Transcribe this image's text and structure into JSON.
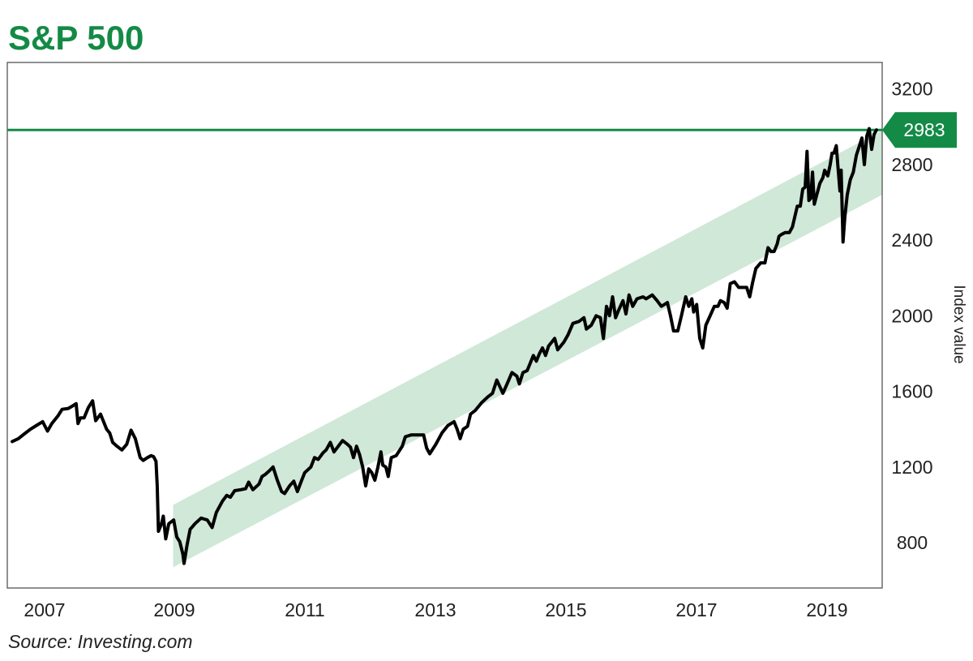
{
  "title": "S&P 500",
  "source": "Source: Investing.com",
  "colors": {
    "title": "#138a46",
    "reference_line": "#138a46",
    "channel_fill": "#cfe8d8",
    "series_line": "#000000",
    "flag_bg": "#138a46",
    "flag_text": "#ffffff",
    "frame": "#555555"
  },
  "chart_data": {
    "type": "line",
    "title": "S&P 500",
    "xlabel": "",
    "ylabel": "Index value",
    "x_ticks": [
      "2007",
      "2009",
      "2011",
      "2013",
      "2015",
      "2017",
      "2019"
    ],
    "y_ticks": [
      800,
      1200,
      1600,
      2000,
      2400,
      2800,
      3200
    ],
    "xlim": [
      2006.45,
      2019.9
    ],
    "ylim": [
      560,
      3340
    ],
    "grid": false,
    "y_axis_side": "right",
    "reference_line": {
      "value": 2983,
      "label": "2983"
    },
    "trend_channel": {
      "start": {
        "x": 2009.0,
        "lower": 670,
        "upper": 1000
      },
      "end": {
        "x": 2019.9,
        "lower": 2640,
        "upper": 2980
      }
    },
    "series": [
      {
        "points": [
          [
            "2006.5",
            1335
          ],
          [
            "2006.6",
            1350
          ],
          [
            "2006.7",
            1375
          ],
          [
            "2006.8",
            1400
          ],
          [
            "2006.9",
            1420
          ],
          [
            "2007.0",
            1440
          ],
          [
            "2007.08",
            1390
          ],
          [
            "2007.15",
            1430
          ],
          [
            "2007.25",
            1470
          ],
          [
            "2007.32",
            1505
          ],
          [
            "2007.42",
            1510
          ],
          [
            "2007.5",
            1525
          ],
          [
            "2007.55",
            1535
          ],
          [
            "2007.58",
            1430
          ],
          [
            "2007.62",
            1460
          ],
          [
            "2007.68",
            1460
          ],
          [
            "2007.75",
            1515
          ],
          [
            "2007.82",
            1550
          ],
          [
            "2007.87",
            1445
          ],
          [
            "2007.95",
            1480
          ],
          [
            "2008.05",
            1400
          ],
          [
            "2008.1",
            1380
          ],
          [
            "2008.15",
            1330
          ],
          [
            "2008.22",
            1310
          ],
          [
            "2008.3",
            1290
          ],
          [
            "2008.38",
            1320
          ],
          [
            "2008.45",
            1395
          ],
          [
            "2008.52",
            1350
          ],
          [
            "2008.6",
            1250
          ],
          [
            "2008.65",
            1235
          ],
          [
            "2008.72",
            1250
          ],
          [
            "2008.78",
            1260
          ],
          [
            "2008.82",
            1255
          ],
          [
            "2008.86",
            1230
          ],
          [
            "2008.88",
            1100
          ],
          [
            "2008.9",
            860
          ],
          [
            "2008.95",
            900
          ],
          [
            "2008.98",
            940
          ],
          [
            "2009.02",
            820
          ],
          [
            "2009.07",
            900
          ],
          [
            "2009.15",
            920
          ],
          [
            "2009.2",
            830
          ],
          [
            "2009.25",
            805
          ],
          [
            "2009.3",
            740
          ],
          [
            "2009.32",
            690
          ],
          [
            "2009.37",
            790
          ],
          [
            "2009.42",
            870
          ],
          [
            "2009.5",
            900
          ],
          [
            "2009.6",
            930
          ],
          [
            "2009.7",
            920
          ],
          [
            "2009.78",
            880
          ],
          [
            "2009.85",
            960
          ],
          [
            "2009.95",
            1020
          ],
          [
            "2010.02",
            1050
          ],
          [
            "2010.08",
            1040
          ],
          [
            "2010.15",
            1075
          ],
          [
            "2010.25",
            1080
          ],
          [
            "2010.33",
            1085
          ],
          [
            "2010.38",
            1120
          ],
          [
            "2010.45",
            1080
          ],
          [
            "2010.55",
            1110
          ],
          [
            "2010.6",
            1150
          ],
          [
            "2010.65",
            1160
          ],
          [
            "2010.72",
            1180
          ],
          [
            "2010.78",
            1200
          ],
          [
            "2010.85",
            1130
          ],
          [
            "2010.92",
            1070
          ],
          [
            "2010.97",
            1060
          ],
          [
            "2011.05",
            1100
          ],
          [
            "2011.12",
            1125
          ],
          [
            "2011.18",
            1070
          ],
          [
            "2011.25",
            1130
          ],
          [
            "2011.3",
            1170
          ],
          [
            "2011.4",
            1200
          ],
          [
            "2011.46",
            1250
          ],
          [
            "2011.52",
            1240
          ],
          [
            "2011.6",
            1275
          ],
          [
            "2011.65",
            1290
          ],
          [
            "2011.72",
            1330
          ],
          [
            "2011.78",
            1280
          ],
          [
            "2011.85",
            1310
          ],
          [
            "2011.92",
            1340
          ],
          [
            "2012.0",
            1320
          ],
          [
            "2012.05",
            1305
          ],
          [
            "2012.1",
            1250
          ],
          [
            "2012.15",
            1310
          ],
          [
            "2012.2",
            1265
          ],
          [
            "2012.25",
            1200
          ],
          [
            "2012.28",
            1140
          ],
          [
            "2012.3",
            1100
          ],
          [
            "2012.35",
            1190
          ],
          [
            "2012.4",
            1170
          ],
          [
            "2012.45",
            1130
          ],
          [
            "2012.5",
            1200
          ],
          [
            "2012.55",
            1280
          ],
          [
            "2012.58",
            1210
          ],
          [
            "2012.63",
            1200
          ],
          [
            "2012.67",
            1150
          ],
          [
            "2012.72",
            1250
          ],
          [
            "2012.8",
            1260
          ],
          [
            "2012.9",
            1310
          ],
          [
            "2012.95",
            1360
          ],
          [
            "2013.05",
            1370
          ],
          [
            "2013.15",
            1370
          ],
          [
            "2013.25",
            1370
          ],
          [
            "2013.3",
            1300
          ],
          [
            "2013.35",
            1270
          ],
          [
            "2013.45",
            1320
          ],
          [
            "2013.55",
            1380
          ],
          [
            "2013.65",
            1420
          ],
          [
            "2013.75",
            1440
          ],
          [
            "2013.8",
            1400
          ],
          [
            "2013.85",
            1350
          ],
          [
            "2013.9",
            1400
          ],
          [
            "2013.97",
            1415
          ],
          [
            "2014.02",
            1480
          ],
          [
            "2014.1",
            1500
          ],
          [
            "2014.2",
            1540
          ],
          [
            "2014.3",
            1570
          ],
          [
            "2014.38",
            1590
          ],
          [
            "2014.45",
            1660
          ],
          [
            "2014.55",
            1590
          ],
          [
            "2014.62",
            1640
          ],
          [
            "2014.7",
            1700
          ],
          [
            "2014.78",
            1680
          ],
          [
            "2014.82",
            1640
          ],
          [
            "2014.88",
            1700
          ],
          [
            "2014.95",
            1710
          ],
          [
            "2015.0",
            1750
          ],
          [
            "2015.05",
            1790
          ],
          [
            "2015.1",
            1760
          ],
          [
            "2015.15",
            1800
          ],
          [
            "2015.2",
            1830
          ],
          [
            "2015.25",
            1790
          ],
          [
            "2015.3",
            1840
          ],
          [
            "2015.4",
            1880
          ],
          [
            "2015.45",
            1820
          ],
          [
            "2015.55",
            1860
          ],
          [
            "2015.62",
            1900
          ],
          [
            "2015.7",
            1960
          ],
          [
            "2015.8",
            1970
          ],
          [
            "2015.88",
            1990
          ],
          [
            "2015.92",
            1930
          ],
          [
            "2016.0",
            1950
          ],
          [
            "2016.08",
            2000
          ],
          [
            "2016.15",
            1990
          ],
          [
            "2016.2",
            1880
          ],
          [
            "2016.25",
            2050
          ],
          [
            "2016.3",
            2000
          ],
          [
            "2016.35",
            2100
          ],
          [
            "2016.4",
            1990
          ],
          [
            "2016.45",
            2030
          ],
          [
            "2016.52",
            2080
          ],
          [
            "2016.57",
            2010
          ],
          [
            "2016.62",
            2110
          ],
          [
            "2016.68",
            2050
          ],
          [
            "2016.75",
            2090
          ],
          [
            "2016.85",
            2100
          ],
          [
            "2016.9",
            2090
          ],
          [
            "2017.0",
            2110
          ],
          [
            "2017.08",
            2080
          ],
          [
            "2017.15",
            2050
          ],
          [
            "2017.2",
            2060
          ],
          [
            "2017.25",
            2070
          ],
          [
            "2017.3",
            2000
          ],
          [
            "2017.35",
            1920
          ],
          [
            "2017.42",
            1920
          ],
          [
            "2017.48",
            2000
          ],
          [
            "2017.55",
            2100
          ],
          [
            "2017.6",
            2050
          ],
          [
            "2017.65",
            2090
          ],
          [
            "2017.68",
            2020
          ],
          [
            "2017.73",
            2060
          ],
          [
            "2017.78",
            1880
          ],
          [
            "2017.83",
            1830
          ],
          [
            "2017.88",
            1950
          ],
          [
            "2017.95",
            2000
          ],
          [
            "2018.02",
            2050
          ],
          [
            "2018.08",
            2050
          ],
          [
            "2018.12",
            2080
          ],
          [
            "2018.18",
            2070
          ],
          [
            "2018.23",
            2040
          ],
          [
            "2018.28",
            2170
          ],
          [
            "2018.35",
            2180
          ],
          [
            "2018.42",
            2150
          ],
          [
            "2018.5",
            2150
          ],
          [
            "2018.55",
            2150
          ],
          [
            "2018.6",
            2100
          ],
          [
            "2018.65",
            2180
          ],
          [
            "2018.7",
            2250
          ],
          [
            "2018.78",
            2280
          ],
          [
            "2018.85",
            2280
          ],
          [
            "2018.9",
            2360
          ],
          [
            "2018.95",
            2340
          ],
          [
            "2019.0",
            2340
          ],
          [
            "2019.05",
            2380
          ],
          [
            "2019.08",
            2420
          ],
          [
            "2019.12",
            2430
          ],
          [
            "2019.18",
            2440
          ],
          [
            "2019.25",
            2440
          ],
          [
            "2019.3",
            2470
          ],
          [
            "2019.38",
            2580
          ],
          [
            "2019.43",
            2580
          ],
          [
            "2019.47",
            2670
          ],
          [
            "2019.51",
            2680
          ],
          [
            "2019.54",
            2870
          ],
          [
            "2019.57",
            2610
          ],
          [
            "2019.6",
            2620
          ],
          [
            "2019.63",
            2760
          ],
          [
            "2019.66",
            2590
          ],
          [
            "2019.7",
            2640
          ],
          [
            "2019.75",
            2700
          ],
          [
            "2019.8",
            2730
          ],
          [
            "2019.83",
            2770
          ],
          [
            "2019.88",
            2740
          ],
          [
            "2019.92",
            2800
          ],
          [
            "2019.95",
            2860
          ],
          [
            "2019.98",
            2860
          ],
          [
            "2020.02",
            2900
          ],
          [
            "2020.05",
            2780
          ],
          [
            "2020.08",
            2660
          ],
          [
            "2020.1",
            2770
          ],
          [
            "2020.13",
            2390
          ],
          [
            "2020.16",
            2520
          ],
          [
            "2020.2",
            2640
          ],
          [
            "2020.25",
            2720
          ],
          [
            "2020.3",
            2760
          ],
          [
            "2020.35",
            2850
          ],
          [
            "2020.4",
            2900
          ],
          [
            "2020.44",
            2940
          ],
          [
            "2020.48",
            2800
          ],
          [
            "2020.52",
            2950
          ],
          [
            "2020.56",
            2990
          ],
          [
            "2020.6",
            2880
          ],
          [
            "2020.64",
            2960
          ],
          [
            "2020.68",
            2983
          ]
        ]
      }
    ]
  }
}
